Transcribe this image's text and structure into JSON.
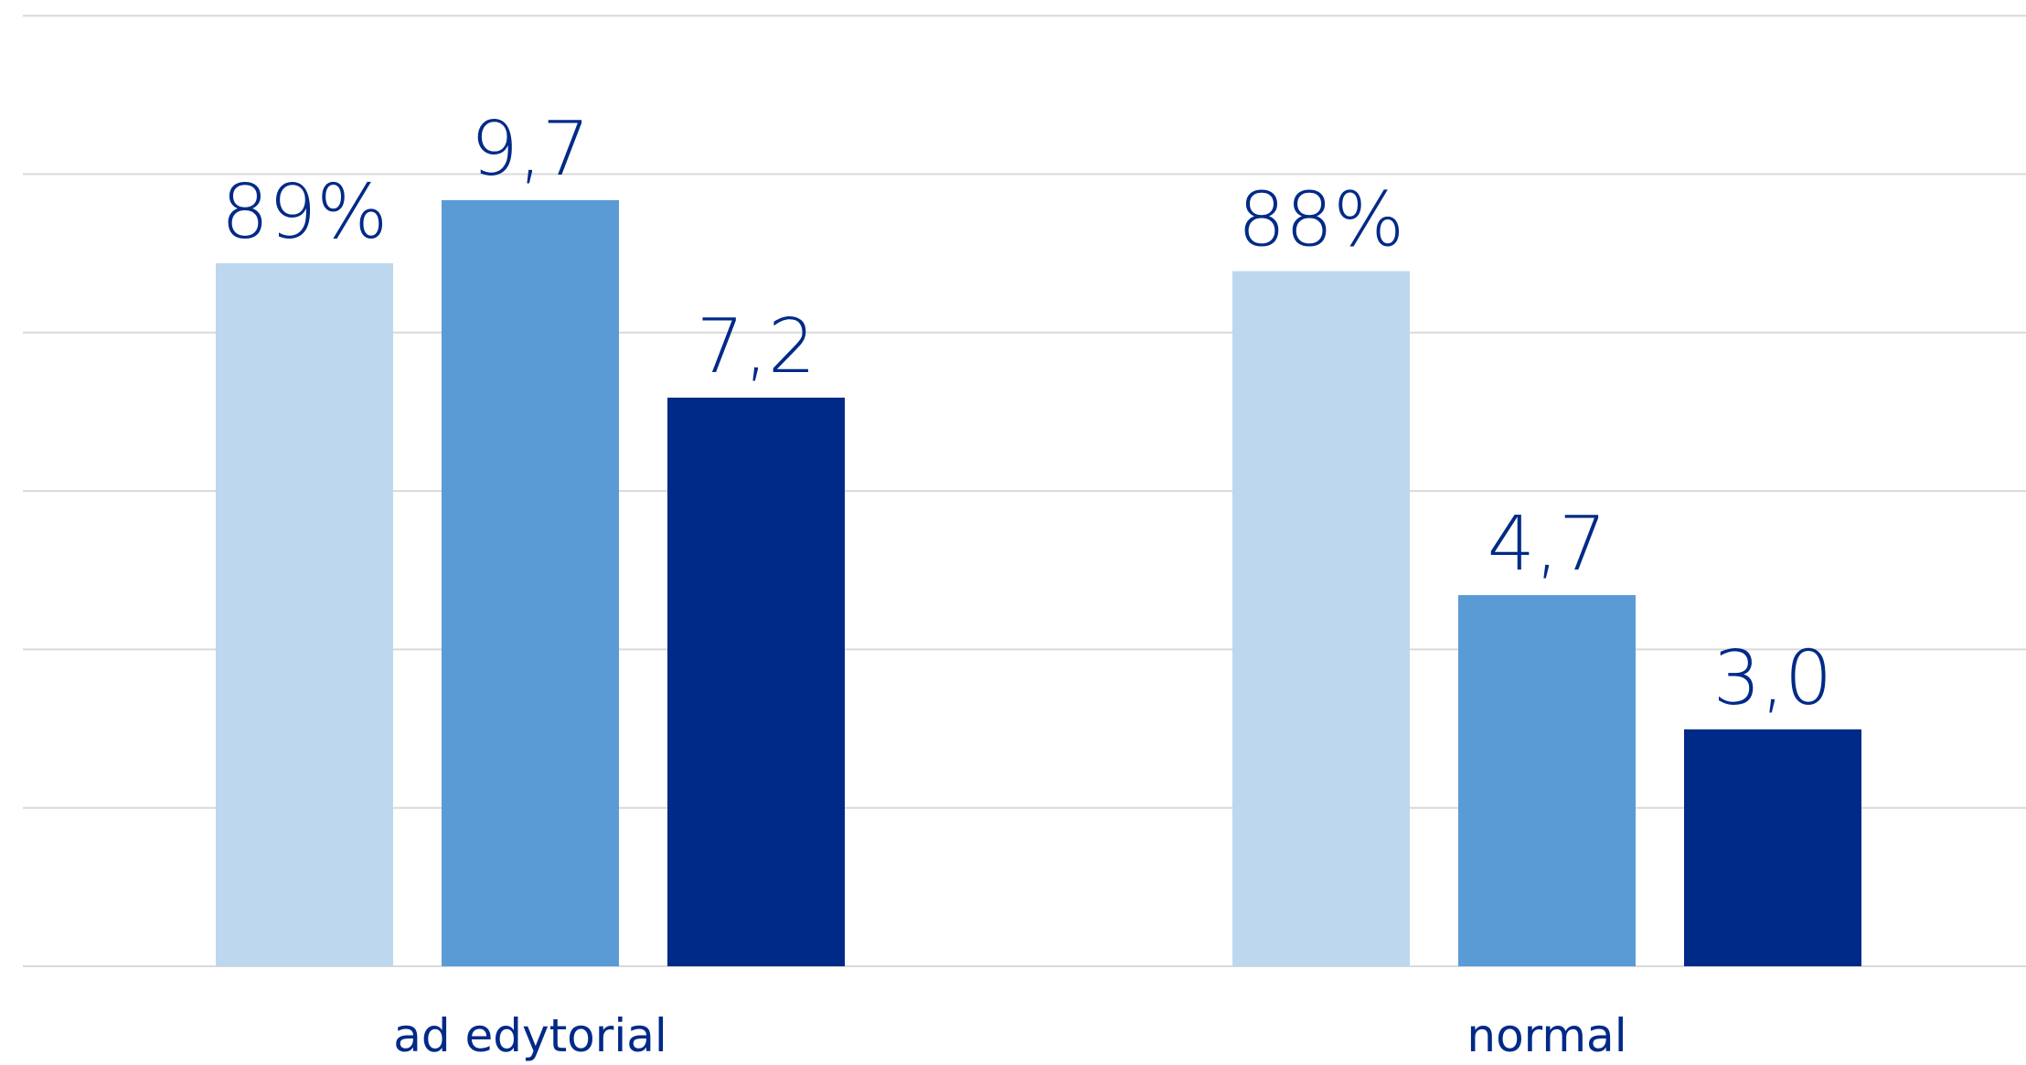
{
  "chart_data": {
    "type": "bar",
    "categories": [
      "ad edytorial",
      "normal"
    ],
    "series": [
      {
        "values": [
          0.89,
          0.88
        ],
        "labels": [
          "89%",
          "88%"
        ],
        "color": "#bdd7ee"
      },
      {
        "values": [
          9.7,
          4.7
        ],
        "labels": [
          "9,7",
          "4,7"
        ],
        "color": "#5b9bd5"
      },
      {
        "values": [
          7.2,
          3.0
        ],
        "labels": [
          "7,2",
          "3,0"
        ],
        "color": "#002a87"
      }
    ],
    "grid": true,
    "legend": "none"
  }
}
